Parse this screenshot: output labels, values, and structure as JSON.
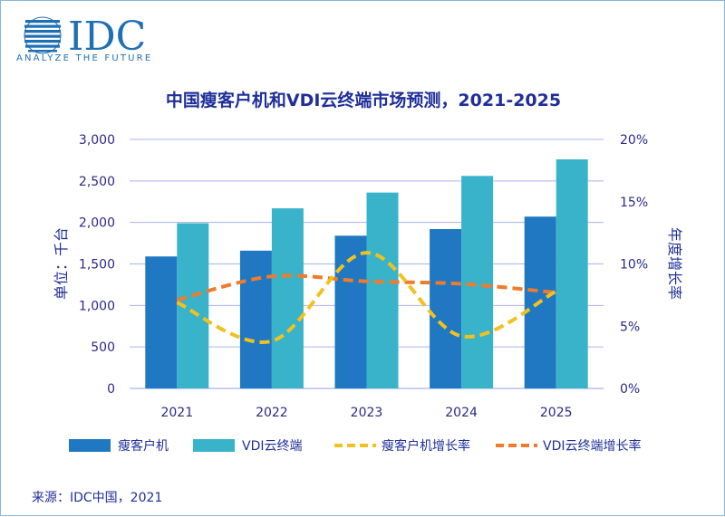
{
  "logo": {
    "brand": "IDC",
    "tagline": "ANALYZE THE FUTURE"
  },
  "source_note": "来源：IDC中国，2021",
  "colors": {
    "thin_client_bar": "#1f78c1",
    "vdi_bar": "#38b3c9",
    "thin_client_growth": "#f2c11f",
    "vdi_growth": "#ef7b2d",
    "text": "#1f2f9a",
    "grid": "#aab3ea"
  },
  "chart_data": {
    "type": "bar",
    "title": "中国瘦客户机和VDI云终端市场预测，2021-2025",
    "ylabel": "单位：千台",
    "y2label": "年度增长率",
    "categories": [
      "2021",
      "2022",
      "2023",
      "2024",
      "2025"
    ],
    "ylim": [
      0,
      3000
    ],
    "y_ticks": [
      "0",
      "500",
      "1,000",
      "1,500",
      "2,000",
      "2,500",
      "3,000"
    ],
    "y2lim": [
      0,
      20
    ],
    "y2_ticks": [
      "0%",
      "5%",
      "10%",
      "15%",
      "20%"
    ],
    "grid": true,
    "legend_position": "bottom",
    "series": [
      {
        "name": "瘦客户机",
        "type": "bar",
        "axis": "left",
        "values": [
          1590,
          1660,
          1840,
          1920,
          2070
        ]
      },
      {
        "name": "VDI云终端",
        "type": "bar",
        "axis": "left",
        "values": [
          1990,
          2170,
          2360,
          2560,
          2760
        ]
      },
      {
        "name": "瘦客户机增长率",
        "type": "line",
        "axis": "right",
        "style": "dashed",
        "values": [
          6.9,
          3.8,
          10.9,
          4.2,
          7.8
        ]
      },
      {
        "name": "VDI云终端增长率",
        "type": "line",
        "axis": "right",
        "style": "dashed",
        "values": [
          7.1,
          9.0,
          8.6,
          8.4,
          7.7
        ]
      }
    ]
  }
}
